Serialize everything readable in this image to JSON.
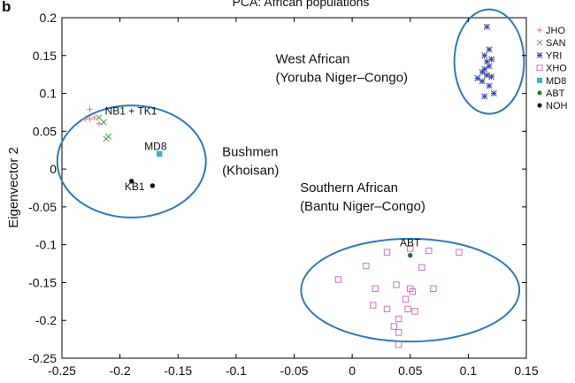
{
  "panel_letter": "b",
  "chart_data": {
    "type": "scatter",
    "title": "PCA: African populations",
    "xlabel": "",
    "ylabel": "Eigenvector 2",
    "xlim": [
      -0.25,
      0.15
    ],
    "ylim": [
      -0.25,
      0.2
    ],
    "x_ticks": [
      "-0.25",
      "-0.2",
      "-0.15",
      "-0.1",
      "-0.05",
      "0",
      "0.05",
      "0.1",
      "0.15"
    ],
    "y_ticks": [
      "0.2",
      "0.15",
      "0.1",
      "0.05",
      "0",
      "-0.05",
      "-0.1",
      "-0.15",
      "-0.2",
      "-0.25"
    ],
    "x_tick_values": [
      -0.25,
      -0.2,
      -0.15,
      -0.1,
      -0.05,
      0,
      0.05,
      0.1,
      0.15
    ],
    "y_tick_values": [
      0.2,
      0.15,
      0.1,
      0.05,
      0,
      -0.05,
      -0.1,
      -0.15,
      -0.2,
      -0.25
    ],
    "grid": false,
    "legend_position": "right",
    "series": [
      {
        "name": "JHO",
        "marker": "plus",
        "color": "#e8736f",
        "points": [
          [
            -0.23,
            0.066
          ],
          [
            -0.226,
            0.079
          ],
          [
            -0.226,
            0.066
          ],
          [
            -0.222,
            0.068
          ],
          [
            -0.218,
            0.06
          ]
        ]
      },
      {
        "name": "SAN",
        "marker": "x",
        "color": "#49a34a",
        "points": [
          [
            -0.218,
            0.068
          ],
          [
            -0.214,
            0.062
          ],
          [
            -0.21,
            0.043
          ],
          [
            -0.212,
            0.04
          ]
        ]
      },
      {
        "name": "YRI",
        "marker": "star",
        "color": "#3645a8",
        "points": [
          [
            0.116,
            0.188
          ],
          [
            0.118,
            0.158
          ],
          [
            0.114,
            0.15
          ],
          [
            0.116,
            0.142
          ],
          [
            0.118,
            0.136
          ],
          [
            0.114,
            0.132
          ],
          [
            0.112,
            0.128
          ],
          [
            0.116,
            0.124
          ],
          [
            0.12,
            0.122
          ],
          [
            0.112,
            0.116
          ],
          [
            0.118,
            0.11
          ],
          [
            0.122,
            0.1
          ],
          [
            0.114,
            0.096
          ],
          [
            0.108,
            0.12
          ],
          [
            0.12,
            0.145
          ]
        ]
      },
      {
        "name": "XHO",
        "marker": "square",
        "color": "#cc6fc4",
        "points": [
          [
            -0.012,
            -0.146
          ],
          [
            0.012,
            -0.128
          ],
          [
            0.03,
            -0.11
          ],
          [
            0.05,
            -0.105
          ],
          [
            0.066,
            -0.108
          ],
          [
            0.092,
            -0.11
          ],
          [
            0.02,
            -0.158
          ],
          [
            0.038,
            -0.153
          ],
          [
            0.052,
            -0.162
          ],
          [
            0.06,
            -0.13
          ],
          [
            0.07,
            -0.158
          ],
          [
            0.018,
            -0.18
          ],
          [
            0.03,
            -0.185
          ],
          [
            0.046,
            -0.172
          ],
          [
            0.048,
            -0.185
          ],
          [
            0.054,
            -0.188
          ],
          [
            0.04,
            -0.198
          ],
          [
            0.036,
            -0.208
          ],
          [
            0.04,
            -0.216
          ],
          [
            0.05,
            -0.158
          ],
          [
            0.04,
            -0.232
          ]
        ]
      },
      {
        "name": "MD8",
        "marker": "filled-square",
        "color": "#2fb3d3",
        "points": [
          [
            -0.166,
            0.02
          ]
        ]
      },
      {
        "name": "ABT",
        "marker": "dot",
        "color": "#1f7a2a",
        "points": [
          [
            0.05,
            -0.114
          ]
        ]
      },
      {
        "name": "NOH",
        "marker": "dot",
        "color": "#111111",
        "points": [
          [
            -0.19,
            -0.016
          ],
          [
            -0.172,
            -0.022
          ]
        ]
      }
    ],
    "groups": [
      {
        "cx": -0.19,
        "cy": 0.01,
        "rx": 0.064,
        "ry": 0.074,
        "label_lines": [
          "Bushmen",
          "(Khoisan)"
        ]
      },
      {
        "cx": 0.118,
        "cy": 0.142,
        "rx": 0.03,
        "ry": 0.069,
        "label_lines": [
          "West African",
          "(Yoruba Niger–Congo)"
        ]
      },
      {
        "cx": 0.05,
        "cy": -0.16,
        "rx": 0.094,
        "ry": 0.068,
        "label_lines": [
          "Southern African",
          "(Bantu Niger–Congo)"
        ]
      }
    ],
    "group_label_positions": [
      {
        "x": -0.112,
        "y": 0.017
      },
      {
        "x": -0.066,
        "y": 0.14
      },
      {
        "x": -0.045,
        "y": -0.03
      }
    ],
    "annotations": [
      {
        "text": "NB1 + TK1",
        "x": -0.213,
        "y": 0.072
      },
      {
        "text": "MD8",
        "x": -0.179,
        "y": 0.025
      },
      {
        "text": "KB1",
        "x": -0.196,
        "y": -0.028
      },
      {
        "text": "ABT",
        "x": 0.041,
        "y": -0.102
      }
    ],
    "ellipse_color": "#2f78b9"
  }
}
